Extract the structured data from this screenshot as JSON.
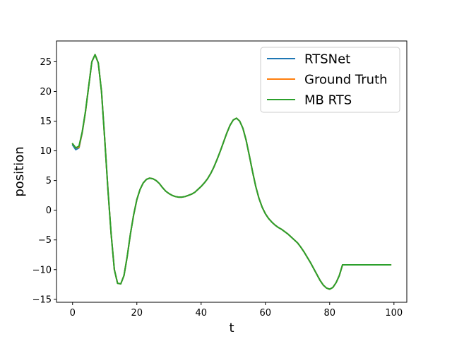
{
  "chart_data": {
    "type": "line",
    "xlabel": "t",
    "ylabel": "position",
    "xlim": [
      -5,
      104
    ],
    "ylim": [
      -15.5,
      28.5
    ],
    "xticks": [
      0,
      20,
      40,
      60,
      80,
      100
    ],
    "yticks": [
      -15,
      -10,
      -5,
      0,
      5,
      10,
      15,
      20,
      25
    ],
    "grid": false,
    "legend_position": "top-right",
    "x": [
      0,
      1,
      2,
      3,
      4,
      5,
      6,
      7,
      8,
      9,
      10,
      11,
      12,
      13,
      14,
      15,
      16,
      17,
      18,
      19,
      20,
      21,
      22,
      23,
      24,
      25,
      26,
      27,
      28,
      29,
      30,
      31,
      32,
      33,
      34,
      35,
      36,
      37,
      38,
      39,
      40,
      41,
      42,
      43,
      44,
      45,
      46,
      47,
      48,
      49,
      50,
      51,
      52,
      53,
      54,
      55,
      56,
      57,
      58,
      59,
      60,
      61,
      62,
      63,
      64,
      65,
      66,
      67,
      68,
      69,
      70,
      71,
      72,
      73,
      74,
      75,
      76,
      77,
      78,
      79,
      80,
      81,
      82,
      83,
      84,
      85,
      86,
      87,
      88,
      89,
      90,
      91,
      92,
      93,
      94,
      95,
      96,
      97,
      98,
      99
    ],
    "series": [
      {
        "name": "RTSNet",
        "color": "#1f77b4",
        "values": [
          11.0,
          10.2,
          10.5,
          13.0,
          16.5,
          20.8,
          25.0,
          26.2,
          24.8,
          20.0,
          12.0,
          3.5,
          -4.0,
          -10.0,
          -12.3,
          -12.4,
          -11.0,
          -7.8,
          -4.0,
          -0.8,
          1.8,
          3.5,
          4.6,
          5.2,
          5.4,
          5.3,
          5.0,
          4.5,
          3.8,
          3.2,
          2.8,
          2.5,
          2.3,
          2.2,
          2.2,
          2.3,
          2.5,
          2.7,
          3.0,
          3.5,
          4.0,
          4.6,
          5.3,
          6.2,
          7.3,
          8.6,
          10.0,
          11.5,
          13.0,
          14.3,
          15.2,
          15.5,
          15.0,
          13.8,
          11.8,
          9.2,
          6.5,
          4.0,
          2.0,
          0.5,
          -0.6,
          -1.4,
          -2.0,
          -2.5,
          -2.9,
          -3.2,
          -3.6,
          -4.0,
          -4.5,
          -5.0,
          -5.5,
          -6.2,
          -7.0,
          -7.9,
          -8.8,
          -9.8,
          -10.8,
          -11.8,
          -12.6,
          -13.1,
          -13.3,
          -13.0,
          -12.2,
          -11.0,
          -9.2,
          -9.2,
          -9.2,
          -9.2,
          -9.2,
          -9.2,
          -9.2,
          -9.2,
          -9.2,
          -9.2,
          -9.2,
          -9.2,
          -9.2,
          -9.2,
          -9.2,
          -9.2
        ]
      },
      {
        "name": "Ground Truth",
        "color": "#ff7f0e",
        "values": [
          11.2,
          10.5,
          10.6,
          13.1,
          16.5,
          20.8,
          25.0,
          26.2,
          24.8,
          20.0,
          12.0,
          3.5,
          -4.0,
          -10.0,
          -12.3,
          -12.4,
          -11.0,
          -7.8,
          -4.0,
          -0.8,
          1.8,
          3.5,
          4.6,
          5.2,
          5.4,
          5.3,
          5.0,
          4.5,
          3.8,
          3.2,
          2.8,
          2.5,
          2.3,
          2.2,
          2.2,
          2.3,
          2.5,
          2.7,
          3.0,
          3.5,
          4.0,
          4.6,
          5.3,
          6.2,
          7.3,
          8.6,
          10.0,
          11.5,
          13.0,
          14.3,
          15.2,
          15.5,
          15.0,
          13.8,
          11.8,
          9.2,
          6.5,
          4.0,
          2.0,
          0.5,
          -0.6,
          -1.4,
          -2.0,
          -2.5,
          -2.9,
          -3.2,
          -3.6,
          -4.0,
          -4.5,
          -5.0,
          -5.5,
          -6.2,
          -7.0,
          -7.9,
          -8.8,
          -9.8,
          -10.8,
          -11.8,
          -12.6,
          -13.1,
          -13.3,
          -13.0,
          -12.2,
          -11.0,
          -9.2,
          -9.2,
          -9.2,
          -9.2,
          -9.2,
          -9.2,
          -9.2,
          -9.2,
          -9.2,
          -9.2,
          -9.2,
          -9.2,
          -9.2,
          -9.2,
          -9.2,
          -9.2
        ]
      },
      {
        "name": "MB RTS",
        "color": "#2ca02c",
        "values": [
          11.2,
          10.5,
          10.8,
          13.2,
          16.6,
          20.8,
          25.0,
          26.2,
          24.8,
          20.0,
          12.0,
          3.5,
          -4.0,
          -10.0,
          -12.3,
          -12.4,
          -11.0,
          -7.8,
          -4.0,
          -0.8,
          1.8,
          3.5,
          4.6,
          5.2,
          5.4,
          5.3,
          5.0,
          4.5,
          3.8,
          3.2,
          2.8,
          2.5,
          2.3,
          2.2,
          2.2,
          2.3,
          2.5,
          2.7,
          3.0,
          3.5,
          4.0,
          4.6,
          5.3,
          6.2,
          7.3,
          8.6,
          10.0,
          11.5,
          13.0,
          14.3,
          15.2,
          15.5,
          15.0,
          13.8,
          11.8,
          9.2,
          6.5,
          4.0,
          2.0,
          0.5,
          -0.6,
          -1.4,
          -2.0,
          -2.5,
          -2.9,
          -3.2,
          -3.6,
          -4.0,
          -4.5,
          -5.0,
          -5.5,
          -6.2,
          -7.0,
          -7.9,
          -8.8,
          -9.8,
          -10.8,
          -11.8,
          -12.6,
          -13.1,
          -13.3,
          -13.0,
          -12.2,
          -11.0,
          -9.2,
          -9.2,
          -9.2,
          -9.2,
          -9.2,
          -9.2,
          -9.2,
          -9.2,
          -9.2,
          -9.2,
          -9.2,
          -9.2,
          -9.2,
          -9.2,
          -9.2,
          -9.2
        ]
      }
    ]
  }
}
